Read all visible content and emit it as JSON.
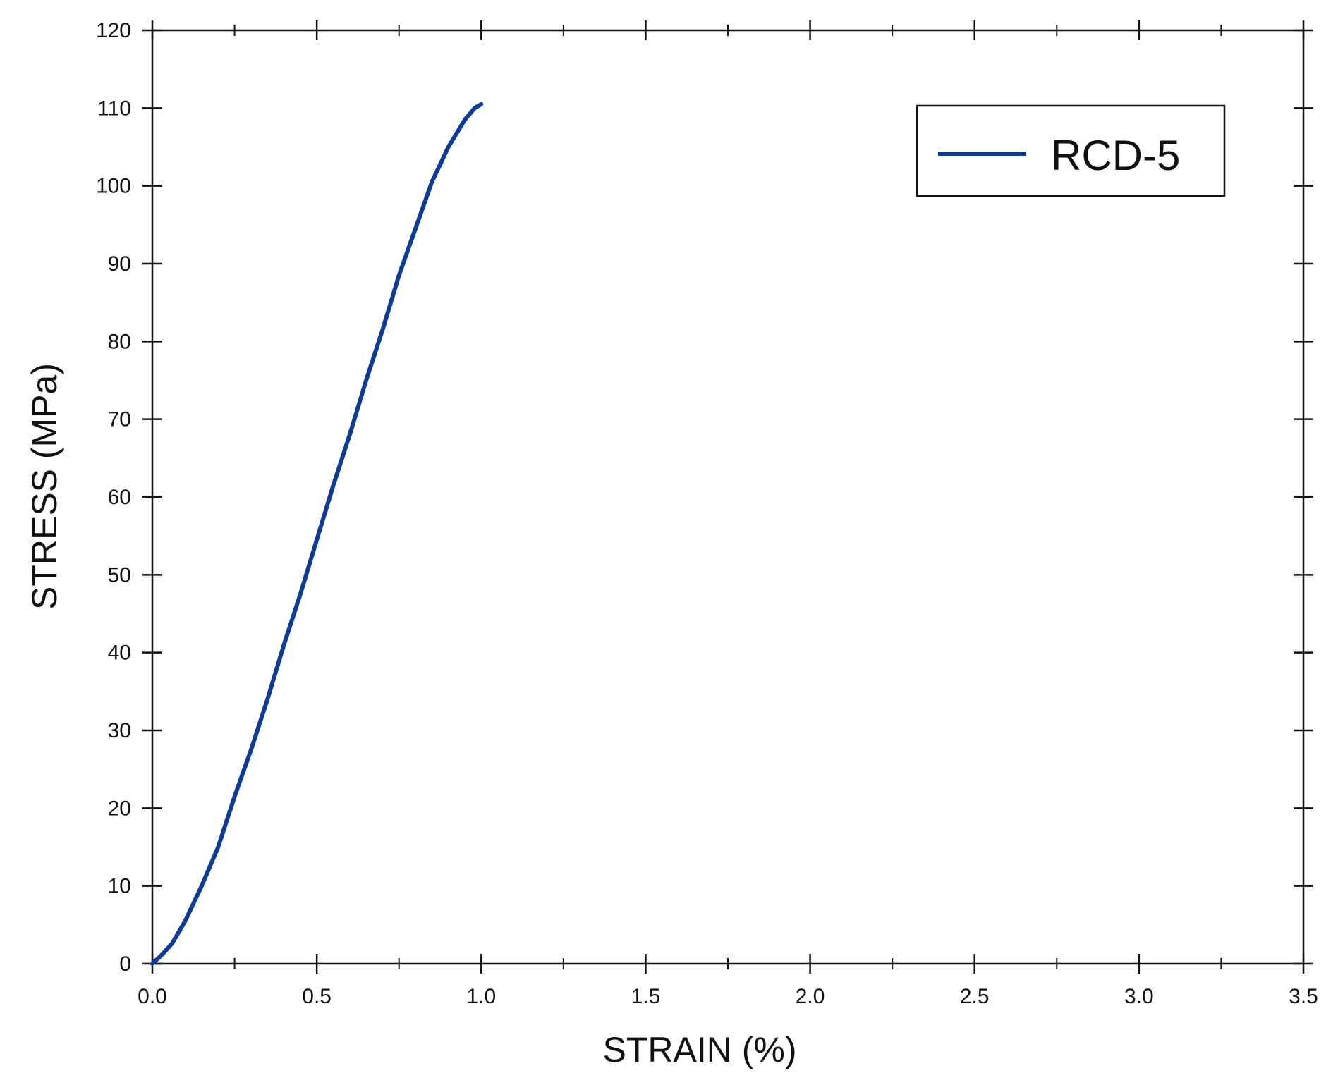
{
  "chart_data": {
    "type": "line",
    "title": "",
    "xlabel": "STRAIN (%)",
    "ylabel": "STRESS (MPa)",
    "xlim": [
      0,
      3.5
    ],
    "ylim": [
      0,
      120
    ],
    "x_ticks": [
      0.0,
      0.5,
      1.0,
      1.5,
      2.0,
      2.5,
      3.0,
      3.5
    ],
    "x_tick_labels": [
      "0.0",
      "0.5",
      "1.0",
      "1.5",
      "2.0",
      "2.5",
      "3.0",
      "3.5"
    ],
    "y_ticks": [
      0,
      10,
      20,
      30,
      40,
      50,
      60,
      70,
      80,
      90,
      100,
      110,
      120
    ],
    "y_tick_labels": [
      "0",
      "10",
      "20",
      "30",
      "40",
      "50",
      "60",
      "70",
      "80",
      "90",
      "100",
      "110",
      "120"
    ],
    "x_minor_ticks": [
      0.25,
      0.75,
      1.25,
      1.75,
      2.25,
      2.75,
      3.25
    ],
    "grid": false,
    "legend_position": "top-right",
    "series": [
      {
        "name": "RCD-5",
        "color": "#0d3b96",
        "x": [
          0.0,
          0.03,
          0.06,
          0.1,
          0.15,
          0.2,
          0.25,
          0.3,
          0.35,
          0.4,
          0.45,
          0.5,
          0.55,
          0.6,
          0.65,
          0.7,
          0.75,
          0.8,
          0.85,
          0.9,
          0.95,
          0.98,
          1.0
        ],
        "y": [
          0.0,
          1.2,
          2.6,
          5.5,
          10.0,
          15.0,
          21.5,
          27.5,
          34.0,
          41.0,
          47.5,
          54.5,
          61.5,
          68.0,
          75.0,
          81.5,
          88.5,
          94.5,
          100.5,
          105.0,
          108.5,
          110.0,
          110.5
        ]
      }
    ]
  }
}
